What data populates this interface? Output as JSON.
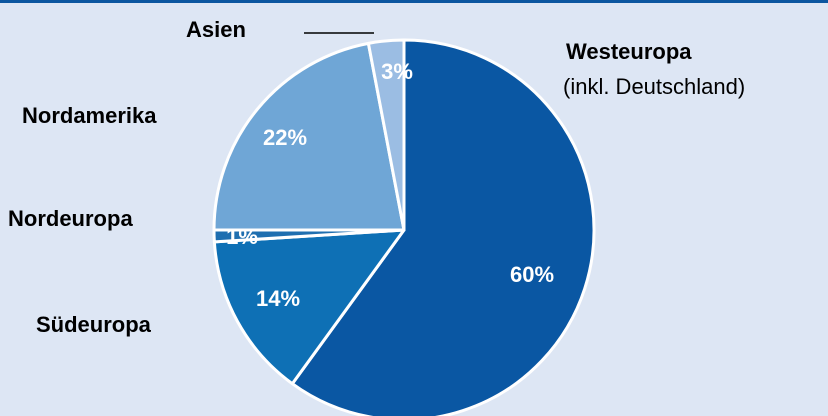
{
  "chart_data": {
    "type": "pie",
    "slices": [
      {
        "label": "Westeuropa",
        "sublabel": "(inkl. Deutschland)",
        "value": 60,
        "value_label": "60%",
        "color": "#0a57a3"
      },
      {
        "label": "Südeuropa",
        "value": 14,
        "value_label": "14%",
        "color": "#0e70b5"
      },
      {
        "label": "Nordeuropa",
        "value": 1,
        "value_label": "1%",
        "color": "#1f6fb0"
      },
      {
        "label": "Nordamerika",
        "value": 22,
        "value_label": "22%",
        "color": "#6fa6d6"
      },
      {
        "label": "Asien",
        "value": 3,
        "value_label": "3%",
        "color": "#9bbde3"
      }
    ],
    "start_angle": "12 o'clock",
    "direction": "clockwise",
    "slice_border_color": "#ffffff",
    "background_color": "#dde6f4",
    "top_border_color": "#0b56a0"
  }
}
